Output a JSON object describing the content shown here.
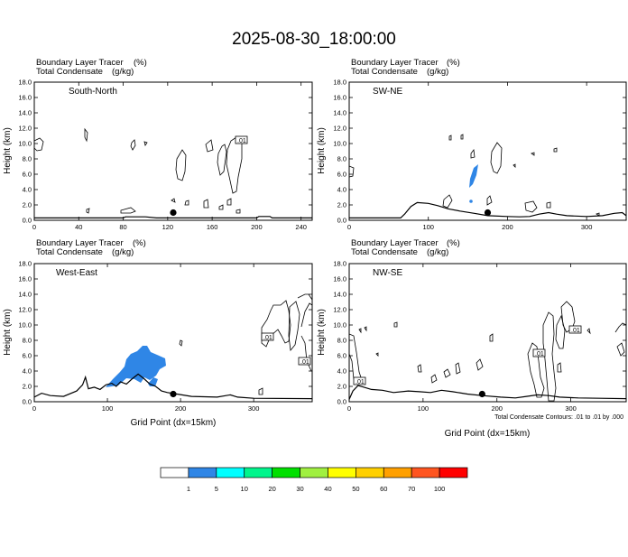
{
  "figure": {
    "title": "2025-08-30_18:00:00",
    "footnote": "Total Condensate Contours: .01 to .01 by .000",
    "xlabel": "Grid Point (dx=15km)",
    "ylabel": "Height (km)"
  },
  "colors": {
    "tracer_fill": "#2f86e6",
    "tracer_fill_light": "#3cc3ff",
    "contour": "#000000",
    "terrain": "#000000"
  },
  "chart_data": [
    {
      "type": "contour",
      "label": "South-North",
      "header_left_1": "Boundary Layer Tracer",
      "header_right_1": "(%)",
      "header_left_2": "Total Condensate",
      "header_right_2": "(g/kg)",
      "xlim": [
        0,
        250
      ],
      "ylim": [
        0,
        18
      ],
      "xticks": [
        "0",
        "40",
        "80",
        "120",
        "160",
        "200",
        "240"
      ],
      "yticks": [
        "0.0",
        "2.0",
        "4.0",
        "6.0",
        "8.0",
        "10.0",
        "12.0",
        "14.0",
        "16.0",
        "18.0"
      ],
      "contour_label": ".01",
      "marker": {
        "x": 125,
        "y": 1.0
      },
      "terrain": [
        [
          0,
          0.3
        ],
        [
          80,
          0.3
        ],
        [
          82,
          0.45
        ],
        [
          100,
          0.45
        ],
        [
          110,
          0.3
        ],
        [
          200,
          0.3
        ],
        [
          202,
          0.5
        ],
        [
          212,
          0.5
        ],
        [
          214,
          0.3
        ],
        [
          250,
          0.3
        ]
      ]
    },
    {
      "type": "contour",
      "label": "SW-NE",
      "header_left_1": "Boundary Layer Tracer",
      "header_right_1": "(%)",
      "header_left_2": "Total Condensate",
      "header_right_2": "(g/kg)",
      "xlim": [
        0,
        350
      ],
      "ylim": [
        0,
        18
      ],
      "xticks": [
        "0",
        "100",
        "200",
        "300"
      ],
      "yticks": [
        "0.0",
        "2.0",
        "4.0",
        "6.0",
        "8.0",
        "10.0",
        "12.0",
        "14.0",
        "16.0",
        "18.0"
      ],
      "marker": {
        "x": 175,
        "y": 1.0
      },
      "terrain": [
        [
          0,
          0.3
        ],
        [
          65,
          0.3
        ],
        [
          70,
          0.8
        ],
        [
          78,
          1.8
        ],
        [
          86,
          2.3
        ],
        [
          100,
          2.2
        ],
        [
          112,
          1.9
        ],
        [
          125,
          1.5
        ],
        [
          140,
          1.2
        ],
        [
          158,
          0.9
        ],
        [
          175,
          0.6
        ],
        [
          200,
          0.5
        ],
        [
          215,
          0.45
        ],
        [
          228,
          0.5
        ],
        [
          240,
          0.8
        ],
        [
          252,
          1.0
        ],
        [
          262,
          0.8
        ],
        [
          275,
          0.6
        ],
        [
          300,
          0.5
        ],
        [
          320,
          0.6
        ],
        [
          335,
          0.9
        ],
        [
          345,
          1.0
        ],
        [
          350,
          0.6
        ]
      ]
    },
    {
      "type": "contour",
      "label": "West-East",
      "header_left_1": "Boundary Layer Tracer",
      "header_right_1": "(%)",
      "header_left_2": "Total Condensate",
      "header_right_2": "(g/kg)",
      "xlim": [
        0,
        380
      ],
      "ylim": [
        0,
        18
      ],
      "xticks": [
        "0",
        "100",
        "200",
        "300"
      ],
      "yticks": [
        "0.0",
        "2.0",
        "4.0",
        "6.0",
        "8.0",
        "10.0",
        "12.0",
        "14.0",
        "16.0",
        "18.0"
      ],
      "contour_label": ".01",
      "marker": {
        "x": 190,
        "y": 1.0
      },
      "terrain": [
        [
          0,
          0.6
        ],
        [
          10,
          1.1
        ],
        [
          22,
          0.8
        ],
        [
          40,
          0.7
        ],
        [
          58,
          1.4
        ],
        [
          66,
          2.2
        ],
        [
          70,
          3.2
        ],
        [
          74,
          1.7
        ],
        [
          82,
          1.9
        ],
        [
          90,
          1.6
        ],
        [
          98,
          2.2
        ],
        [
          106,
          2.4
        ],
        [
          112,
          2.0
        ],
        [
          118,
          2.6
        ],
        [
          126,
          2.3
        ],
        [
          134,
          3.0
        ],
        [
          142,
          3.6
        ],
        [
          150,
          3.0
        ],
        [
          158,
          2.3
        ],
        [
          166,
          2.0
        ],
        [
          174,
          1.4
        ],
        [
          182,
          1.2
        ],
        [
          195,
          1.0
        ],
        [
          215,
          0.7
        ],
        [
          250,
          0.6
        ],
        [
          268,
          0.9
        ],
        [
          278,
          0.6
        ],
        [
          300,
          0.45
        ],
        [
          380,
          0.4
        ]
      ]
    },
    {
      "type": "contour",
      "label": "NW-SE",
      "header_left_1": "Boundary Layer Tracer",
      "header_right_1": "(%)",
      "header_left_2": "Total Condensate",
      "header_right_2": "(g/kg)",
      "xlim": [
        0,
        375
      ],
      "ylim": [
        0,
        18
      ],
      "xticks": [
        "0",
        "100",
        "200",
        "300"
      ],
      "yticks": [
        "0.0",
        "2.0",
        "4.0",
        "6.0",
        "8.0",
        "10.0",
        "12.0",
        "14.0",
        "16.0",
        "18.0"
      ],
      "contour_label": ".01",
      "marker": {
        "x": 180,
        "y": 1.0
      },
      "terrain": [
        [
          0,
          0.3
        ],
        [
          5,
          1.4
        ],
        [
          12,
          2.1
        ],
        [
          20,
          1.9
        ],
        [
          30,
          1.6
        ],
        [
          45,
          1.5
        ],
        [
          60,
          1.2
        ],
        [
          80,
          1.4
        ],
        [
          95,
          1.3
        ],
        [
          110,
          1.2
        ],
        [
          125,
          1.5
        ],
        [
          140,
          1.3
        ],
        [
          160,
          1.0
        ],
        [
          180,
          0.8
        ],
        [
          205,
          0.6
        ],
        [
          225,
          0.5
        ],
        [
          240,
          0.7
        ],
        [
          255,
          0.9
        ],
        [
          270,
          0.8
        ],
        [
          285,
          0.6
        ],
        [
          310,
          0.5
        ],
        [
          340,
          0.45
        ],
        [
          375,
          0.4
        ]
      ]
    }
  ],
  "colorbar": {
    "colors": [
      "#ffffff",
      "#2f86e6",
      "#00ffff",
      "#00f58c",
      "#00e000",
      "#a0f040",
      "#ffff00",
      "#ffd000",
      "#ffa000",
      "#ff5520",
      "#ff0000"
    ],
    "labels": [
      "1",
      "5",
      "10",
      "20",
      "30",
      "40",
      "50",
      "60",
      "70",
      "100"
    ]
  }
}
